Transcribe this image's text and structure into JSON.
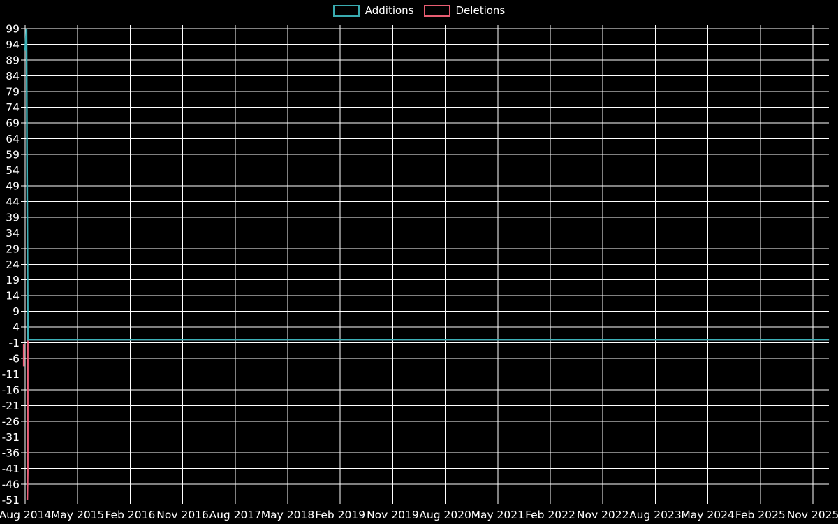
{
  "legend": {
    "items": [
      {
        "label": "Additions",
        "color": "#3aabb0"
      },
      {
        "label": "Deletions",
        "color": "#e85d72"
      }
    ],
    "position": "top-center"
  },
  "colors": {
    "background": "#000000",
    "grid": "#ffffff",
    "text": "#ffffff",
    "additions": "#3cb0b6",
    "deletions": "#ee5e78",
    "overlapping_zero_line": "#85a2ae"
  },
  "chart_data": {
    "type": "line",
    "title": "",
    "xlabel": "",
    "ylabel": "",
    "grid": true,
    "legend_position": "top-center",
    "x_axis": {
      "unit": "weeks since Aug 2014",
      "range_labels": [
        "Aug 2014",
        "Nov 2025"
      ],
      "labels": [
        "Aug 2014",
        "May 2015",
        "Feb 2016",
        "Nov 2016",
        "Aug 2017",
        "May 2018",
        "Feb 2019",
        "Nov 2019",
        "Aug 2020",
        "May 2021",
        "Feb 2022",
        "Nov 2022",
        "Aug 2023",
        "May 2024",
        "Feb 2025",
        "Nov 2025"
      ]
    },
    "y_axis": {
      "min": -51,
      "max": 99,
      "step": 5,
      "ticks": [
        99,
        94,
        89,
        84,
        79,
        74,
        69,
        64,
        59,
        54,
        49,
        44,
        39,
        34,
        29,
        24,
        19,
        14,
        9,
        4,
        -1,
        -6,
        -11,
        -16,
        -21,
        -26,
        -31,
        -36,
        -41,
        -46,
        -51
      ]
    },
    "series": [
      {
        "name": "Additions",
        "color": "#3cb0b6",
        "zero_run_color": "#85a2ae",
        "summary": "Spike at far left (Aug 2014) peaking at 99 (with nearby point ~92), then constant 0 through Nov 2025",
        "runs": [
          [
            [
              0,
              92
            ],
            [
              1,
              99
            ],
            [
              2,
              0
            ],
            [
              592,
              0
            ]
          ]
        ]
      },
      {
        "name": "Deletions",
        "color": "#ee5e78",
        "summary": "Small dip to about -8 then spike to -51 at far left (Aug 2014), then constant 0 through Nov 2025 (hidden under Additions zero line)",
        "runs": [
          [
            [
              -1,
              -1.5
            ],
            [
              -1,
              -8.5
            ]
          ],
          [
            [
              1.9,
              0
            ],
            [
              1.9,
              -42
            ],
            [
              1.6,
              -51
            ]
          ],
          [
            [
              2,
              0
            ],
            [
              592,
              0
            ]
          ]
        ]
      }
    ]
  }
}
